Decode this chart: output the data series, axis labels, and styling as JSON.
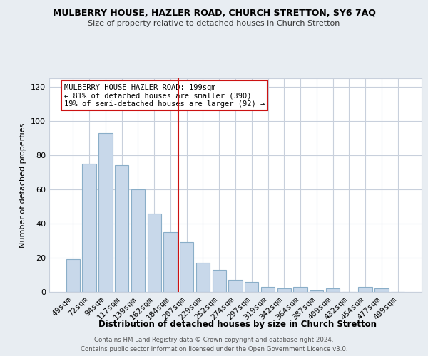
{
  "title": "MULBERRY HOUSE, HAZLER ROAD, CHURCH STRETTON, SY6 7AQ",
  "subtitle": "Size of property relative to detached houses in Church Stretton",
  "xlabel": "Distribution of detached houses by size in Church Stretton",
  "ylabel": "Number of detached properties",
  "bar_color": "#c8d8ea",
  "bar_edge_color": "#8aaec8",
  "categories": [
    "49sqm",
    "72sqm",
    "94sqm",
    "117sqm",
    "139sqm",
    "162sqm",
    "184sqm",
    "207sqm",
    "229sqm",
    "252sqm",
    "274sqm",
    "297sqm",
    "319sqm",
    "342sqm",
    "364sqm",
    "387sqm",
    "409sqm",
    "432sqm",
    "454sqm",
    "477sqm",
    "499sqm"
  ],
  "values": [
    19,
    75,
    93,
    74,
    60,
    46,
    35,
    29,
    17,
    13,
    7,
    6,
    3,
    2,
    3,
    1,
    2,
    0,
    3,
    2,
    0
  ],
  "vline_color": "#cc1111",
  "ylim": [
    0,
    125
  ],
  "yticks": [
    0,
    20,
    40,
    60,
    80,
    100,
    120
  ],
  "ann_line1": "MULBERRY HOUSE HAZLER ROAD: 199sqm",
  "ann_line2": "← 81% of detached houses are smaller (390)",
  "ann_line3": "19% of semi-detached houses are larger (92) →",
  "footer_line1": "Contains HM Land Registry data © Crown copyright and database right 2024.",
  "footer_line2": "Contains public sector information licensed under the Open Government Licence v3.0.",
  "fig_bg_color": "#e8edf2",
  "plot_bg_color": "#ffffff",
  "grid_color": "#c8d0dc"
}
